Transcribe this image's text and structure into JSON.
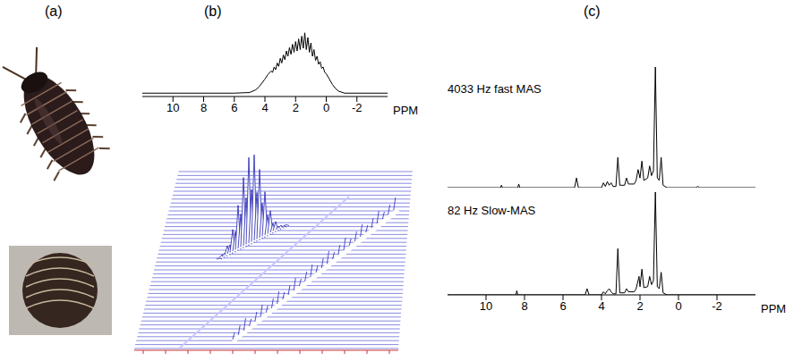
{
  "panel_labels": [
    "(a)",
    "(b)",
    "(c)"
  ],
  "chart_data": [
    {
      "type": "line",
      "color": "#000000",
      "xlim": [
        12,
        -4
      ],
      "xticks": [
        10,
        8,
        6,
        4,
        2,
        0,
        -2
      ],
      "xlabel": "PPM",
      "ylim": [
        0,
        100
      ],
      "tick_labels": "x",
      "x": [
        12,
        6,
        5,
        4.6,
        4.4,
        4.2,
        4.0,
        3.8,
        3.6,
        3.5,
        3.4,
        3.3,
        3.2,
        3.1,
        3.0,
        2.9,
        2.8,
        2.7,
        2.6,
        2.5,
        2.4,
        2.3,
        2.2,
        2.1,
        2.0,
        1.9,
        1.8,
        1.7,
        1.6,
        1.5,
        1.4,
        1.3,
        1.2,
        1.1,
        1.0,
        0.9,
        0.8,
        0.7,
        0.6,
        0.5,
        0.4,
        0.3,
        0.2,
        0.1,
        0.0,
        -0.2,
        -0.4,
        -0.6,
        -0.8,
        -1.2,
        -4
      ],
      "values": [
        5,
        5,
        6,
        10,
        14,
        20,
        26,
        33,
        38,
        36,
        44,
        40,
        50,
        45,
        57,
        50,
        62,
        55,
        68,
        60,
        73,
        63,
        78,
        66,
        82,
        68,
        86,
        70,
        90,
        72,
        95,
        70,
        88,
        66,
        80,
        60,
        70,
        54,
        60,
        48,
        52,
        42,
        44,
        36,
        34,
        26,
        18,
        12,
        8,
        5,
        5
      ]
    },
    {
      "type": "line",
      "color": "#000000",
      "annotation": "4033 Hz fast MAS",
      "xlim": [
        12,
        -4
      ],
      "ylim": [
        0,
        100
      ],
      "tick_labels": false,
      "x": [
        12,
        9.25,
        9.2,
        9.15,
        8.35,
        8.3,
        8.25,
        5.4,
        5.3,
        5.2,
        4.0,
        3.9,
        3.8,
        3.7,
        3.6,
        3.5,
        3.4,
        3.25,
        3.15,
        3.05,
        2.8,
        2.7,
        2.6,
        2.3,
        2.2,
        2.1,
        2.0,
        1.9,
        1.8,
        1.6,
        1.5,
        1.4,
        1.3,
        1.2,
        1.1,
        1.0,
        0.9,
        0.8,
        0.6,
        -0.9,
        -1.0,
        -1.1,
        -4
      ],
      "values": [
        0,
        0,
        2,
        0,
        0,
        3,
        0,
        0,
        8,
        0,
        0,
        4,
        1,
        5,
        2,
        4,
        1,
        1,
        25,
        2,
        2,
        8,
        3,
        3,
        6,
        15,
        8,
        22,
        6,
        8,
        18,
        10,
        14,
        100,
        8,
        6,
        25,
        2,
        0,
        0,
        1,
        0,
        0
      ]
    },
    {
      "type": "line",
      "color": "#000000",
      "annotation": "82 Hz Slow-MAS",
      "xlim": [
        12,
        -4
      ],
      "xticks": [
        10,
        8,
        6,
        4,
        2,
        0,
        -2
      ],
      "xlabel": "PPM",
      "ylim": [
        0,
        100
      ],
      "tick_labels": "x",
      "x": [
        12,
        8.45,
        8.4,
        8.35,
        4.85,
        4.75,
        4.65,
        4.0,
        3.9,
        3.8,
        3.7,
        3.6,
        3.5,
        3.4,
        3.25,
        3.15,
        3.05,
        2.8,
        2.7,
        2.6,
        2.3,
        2.2,
        2.05,
        2.0,
        1.9,
        1.8,
        1.6,
        1.5,
        1.4,
        1.3,
        1.2,
        1.1,
        1.0,
        0.9,
        0.8,
        0.6,
        -4
      ],
      "values": [
        0,
        0,
        4,
        0,
        0,
        6,
        0,
        0,
        3,
        1,
        4,
        6,
        3,
        1,
        1,
        45,
        2,
        2,
        6,
        3,
        3,
        6,
        18,
        8,
        25,
        7,
        8,
        18,
        10,
        14,
        100,
        8,
        6,
        22,
        2,
        0,
        0
      ]
    }
  ]
}
